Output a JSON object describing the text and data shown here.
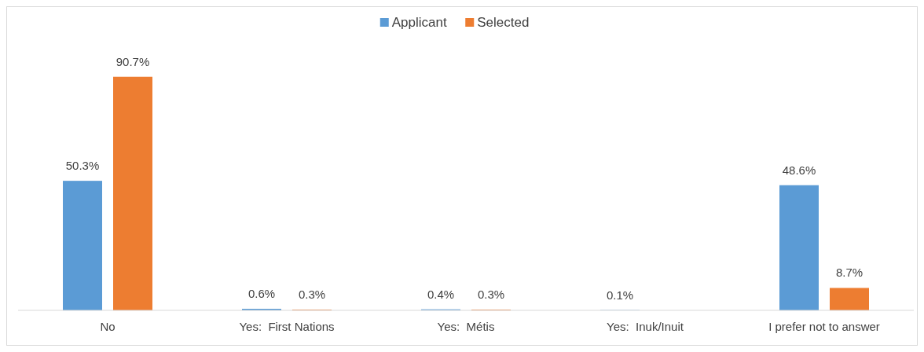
{
  "chart_data": {
    "type": "bar",
    "categories": [
      "No",
      "Yes:  First Nations",
      "Yes:  Métis",
      "Yes:  Inuk/Inuit",
      "I prefer not to answer"
    ],
    "series": [
      {
        "name": "Applicant",
        "color": "#5b9bd5",
        "values": [
          50.3,
          0.6,
          0.4,
          0.1,
          48.6
        ],
        "value_labels": [
          "50.3%",
          "0.6%",
          "0.4%",
          "0.1%",
          "48.6%"
        ]
      },
      {
        "name": "Selected",
        "color": "#ed7d31",
        "values": [
          90.7,
          0.3,
          0.3,
          null,
          8.7
        ],
        "value_labels": [
          "90.7%",
          "0.3%",
          "0.3%",
          null,
          "8.7%"
        ]
      }
    ],
    "legend": "top"
  }
}
